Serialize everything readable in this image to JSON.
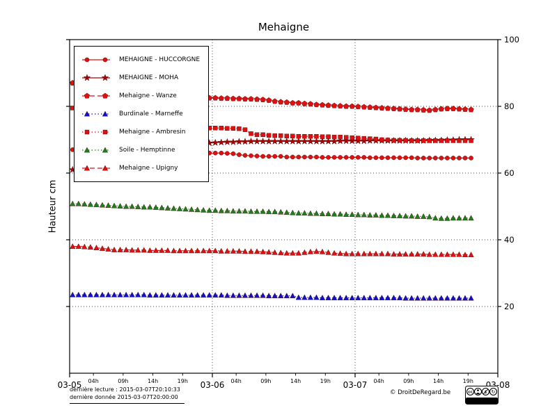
{
  "chart_data": {
    "type": "line",
    "title": "Mehaigne",
    "xlabel": "",
    "ylabel": "Hauteur cm",
    "ylim": [
      0,
      100
    ],
    "xlim_hours": [
      0,
      72
    ],
    "grid": true,
    "legend_position": "upper left",
    "y_ticks": [
      20,
      40,
      60,
      80,
      100
    ],
    "x_axis": {
      "major_ticks": [
        {
          "hour": 0,
          "label": "03-05"
        },
        {
          "hour": 24,
          "label": "03-06"
        },
        {
          "hour": 48,
          "label": "03-07"
        },
        {
          "hour": 72,
          "label": "03-08"
        }
      ],
      "minor_ticks": [
        {
          "hour": 4,
          "label": "04h"
        },
        {
          "hour": 9,
          "label": "09h"
        },
        {
          "hour": 14,
          "label": "14h"
        },
        {
          "hour": 19,
          "label": "19h"
        },
        {
          "hour": 28,
          "label": "04h"
        },
        {
          "hour": 33,
          "label": "09h"
        },
        {
          "hour": 38,
          "label": "14h"
        },
        {
          "hour": 43,
          "label": "19h"
        },
        {
          "hour": 52,
          "label": "04h"
        },
        {
          "hour": 57,
          "label": "09h"
        },
        {
          "hour": 62,
          "label": "14h"
        },
        {
          "hour": 67,
          "label": "19h"
        }
      ]
    },
    "x_start_hour": 0.5,
    "x_step_hours": 1,
    "series": [
      {
        "id": "huccorgne",
        "name": "MEHAIGNE - HUCCORGNE",
        "color": "#dd1111",
        "marker": "circle",
        "line": "solid",
        "values": [
          67,
          66.9,
          66.8,
          66.7,
          66.6,
          66.5,
          66.4,
          66.4,
          66.3,
          66.3,
          66.2,
          66.2,
          66.1,
          66.1,
          66,
          66,
          66,
          66,
          66,
          66,
          66,
          66,
          66,
          66,
          66,
          66,
          65.9,
          65.8,
          65.5,
          65.3,
          65.2,
          65.1,
          65,
          65,
          65,
          65,
          64.8,
          64.8,
          64.8,
          64.8,
          64.8,
          64.8,
          64.7,
          64.7,
          64.7,
          64.7,
          64.7,
          64.7,
          64.7,
          64.7,
          64.6,
          64.6,
          64.6,
          64.6,
          64.6,
          64.6,
          64.6,
          64.6,
          64.5,
          64.5,
          64.5,
          64.5,
          64.5,
          64.5,
          64.5,
          64.5,
          64.5,
          64.5
        ]
      },
      {
        "id": "moha",
        "name": "MEHAIGNE - MOHA",
        "color": "#aa0000",
        "marker": "star",
        "line": "solid",
        "values": [
          61,
          61.5,
          62,
          62.5,
          63,
          63.5,
          64,
          64.4,
          64.8,
          65.2,
          65.6,
          66,
          66.3,
          66.6,
          66.9,
          67.2,
          67.5,
          67.8,
          68,
          68.3,
          68.5,
          68.7,
          68.9,
          69,
          69.1,
          69.2,
          69.3,
          69.3,
          69.4,
          69.4,
          69.5,
          69.5,
          69.5,
          69.5,
          69.5,
          69.5,
          69.5,
          69.5,
          69.5,
          69.5,
          69.5,
          69.5,
          69.5,
          69.5,
          69.5,
          69.6,
          69.6,
          69.6,
          69.6,
          69.6,
          69.7,
          69.7,
          69.7,
          69.7,
          69.7,
          69.7,
          69.7,
          69.7,
          69.7,
          69.7,
          69.8,
          69.8,
          69.8,
          69.9,
          69.9,
          70,
          70,
          70
        ]
      },
      {
        "id": "wanze",
        "name": "Mehaigne - Wanze",
        "color": "#dd1111",
        "marker": "pentagon",
        "line": "dashed",
        "values": [
          87,
          86.5,
          86,
          85.5,
          85,
          84.8,
          84.5,
          84.3,
          84,
          83.8,
          83.6,
          83.5,
          83.4,
          83.3,
          83.2,
          83.1,
          83,
          83,
          82.9,
          82.8,
          82.7,
          82.6,
          82.5,
          82.5,
          82.5,
          82.4,
          82.4,
          82.3,
          82.3,
          82.2,
          82.2,
          82.1,
          82,
          81.8,
          81.5,
          81.3,
          81.2,
          81,
          81,
          80.8,
          80.7,
          80.5,
          80.4,
          80.3,
          80.2,
          80.1,
          80,
          80,
          79.9,
          79.8,
          79.7,
          79.6,
          79.5,
          79.4,
          79.3,
          79.2,
          79.1,
          79,
          79,
          78.9,
          78.8,
          79,
          79.2,
          79.3,
          79.3,
          79.2,
          79.1,
          79
        ]
      },
      {
        "id": "marneffe",
        "name": "Burdinale - Marneffe",
        "color": "#1111cc",
        "marker": "triangle",
        "line": "dotted",
        "values": [
          23.5,
          23.5,
          23.5,
          23.5,
          23.5,
          23.5,
          23.5,
          23.5,
          23.5,
          23.5,
          23.5,
          23.5,
          23.5,
          23.4,
          23.4,
          23.4,
          23.4,
          23.4,
          23.4,
          23.4,
          23.4,
          23.4,
          23.4,
          23.4,
          23.4,
          23.4,
          23.3,
          23.3,
          23.3,
          23.3,
          23.3,
          23.3,
          23.3,
          23.2,
          23.2,
          23.2,
          23.2,
          23.2,
          22.7,
          22.7,
          22.7,
          22.7,
          22.6,
          22.6,
          22.6,
          22.6,
          22.6,
          22.6,
          22.6,
          22.6,
          22.6,
          22.6,
          22.6,
          22.6,
          22.6,
          22.6,
          22.5,
          22.5,
          22.5,
          22.5,
          22.5,
          22.5,
          22.5,
          22.5,
          22.5,
          22.5,
          22.5,
          22.5
        ]
      },
      {
        "id": "ambresin",
        "name": "Mehaigne - Ambresin",
        "color": "#dd1111",
        "marker": "square",
        "line": "dotted",
        "values": [
          79.5,
          79,
          78.4,
          77.8,
          77.2,
          76.7,
          76.2,
          75.8,
          75.4,
          75,
          74.7,
          74.4,
          74.2,
          74,
          73.9,
          73.8,
          73.7,
          73.6,
          73.6,
          73.5,
          73.5,
          73.5,
          73.5,
          73.5,
          73.5,
          73.5,
          73.4,
          73.4,
          73.3,
          73,
          71.8,
          71.5,
          71.5,
          71.3,
          71.2,
          71.2,
          71.1,
          71.1,
          71,
          71,
          71,
          71,
          70.9,
          70.9,
          70.8,
          70.8,
          70.7,
          70.6,
          70.5,
          70.4,
          70.3,
          70.2,
          70,
          69.9,
          69.8,
          69.8,
          69.8,
          69.7,
          69.7,
          69.7,
          69.7,
          69.7,
          69.7,
          69.7,
          69.7,
          69.7,
          69.7,
          69.7
        ]
      },
      {
        "id": "hemptinne",
        "name": "Soile - Hemptinne",
        "color": "#1e7d1e",
        "marker": "triangle",
        "line": "dotted",
        "values": [
          50.8,
          50.8,
          50.7,
          50.6,
          50.5,
          50.4,
          50.3,
          50.2,
          50.1,
          50,
          50,
          49.9,
          49.8,
          49.8,
          49.7,
          49.6,
          49.5,
          49.4,
          49.3,
          49.2,
          49.1,
          49,
          48.9,
          48.8,
          48.8,
          48.7,
          48.7,
          48.6,
          48.6,
          48.6,
          48.5,
          48.5,
          48.5,
          48.4,
          48.4,
          48.3,
          48.2,
          48.1,
          48,
          48,
          47.9,
          47.9,
          47.8,
          47.8,
          47.7,
          47.7,
          47.6,
          47.6,
          47.5,
          47.5,
          47.4,
          47.4,
          47.3,
          47.3,
          47.2,
          47.2,
          47.1,
          47.1,
          47,
          47,
          46.9,
          46.5,
          46.4,
          46.4,
          46.5,
          46.5,
          46.5,
          46.5
        ]
      },
      {
        "id": "upigny",
        "name": "Mehaigne - Upigny",
        "color": "#dd1111",
        "marker": "triangle",
        "line": "dashed",
        "values": [
          38,
          38,
          37.9,
          37.8,
          37.6,
          37.4,
          37.2,
          37,
          37,
          37,
          36.9,
          36.9,
          36.9,
          36.8,
          36.8,
          36.8,
          36.8,
          36.7,
          36.7,
          36.7,
          36.7,
          36.7,
          36.7,
          36.7,
          36.7,
          36.6,
          36.6,
          36.6,
          36.6,
          36.5,
          36.5,
          36.5,
          36.4,
          36.3,
          36.2,
          36.1,
          36,
          36,
          36,
          36.2,
          36.4,
          36.5,
          36.4,
          36.2,
          36,
          35.9,
          35.8,
          35.8,
          35.8,
          35.8,
          35.8,
          35.8,
          35.8,
          35.8,
          35.7,
          35.7,
          35.7,
          35.7,
          35.7,
          35.7,
          35.6,
          35.6,
          35.6,
          35.6,
          35.6,
          35.6,
          35.5,
          35.5
        ]
      }
    ]
  },
  "footer": {
    "last_reading": "dernière lecture : 2015-03-07T20:10:33",
    "last_data": "dernière donnée  2015-03-07T20:00:00",
    "copyright": "© DroitDeRegard.be",
    "cc_text": "BY NC SA"
  }
}
